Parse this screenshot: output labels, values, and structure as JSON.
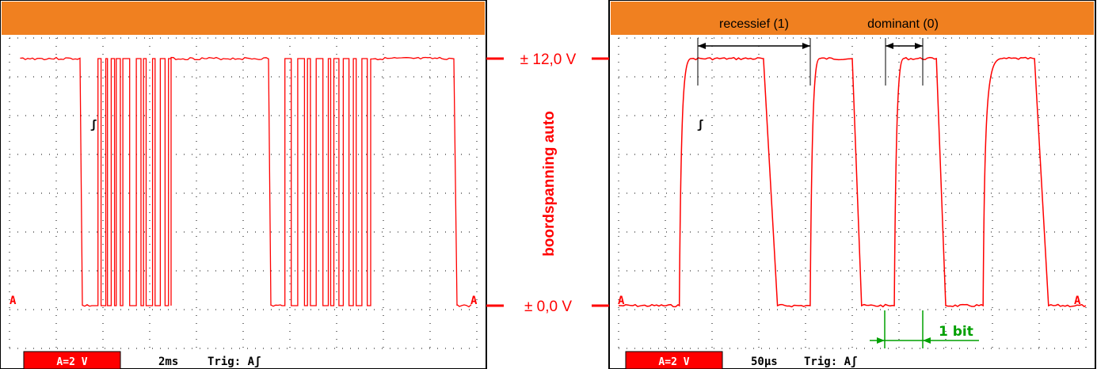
{
  "center": {
    "level_high": "± 12,0 V",
    "level_low": "± 0,0 V",
    "caption": "boordspanning auto"
  },
  "colors": {
    "header_orange": "#f08020",
    "trace_red": "#ff0000",
    "status_red": "#ff0000",
    "annotation_green": "#00a000",
    "grid_dot": "#000000"
  },
  "left_screen": {
    "marker": "A",
    "trigger_glyph": "ʃ",
    "status": {
      "range_badge": "A=2 V",
      "timebase": "2ms",
      "trigger": "Trig: Aʃ"
    }
  },
  "right_screen": {
    "marker": "A",
    "trigger_glyph": "ʃ",
    "label_recessive": "recessief (1)",
    "label_dominant": "dominant (0)",
    "label_bit": "1 bit",
    "status": {
      "range_badge": "A=2 V",
      "timebase": "50µs",
      "trigger": "Trig: Aʃ"
    }
  },
  "chart_data": [
    {
      "type": "line",
      "title": "",
      "xlabel": "",
      "ylabel": "",
      "time_per_div": "2ms",
      "volts_per_div": "2 V",
      "ylim": [
        0,
        12
      ],
      "series": [
        {
          "x": [
            0,
            0.7,
            1.1,
            2.4,
            5.0,
            6.7,
            8.3,
            9.9,
            10.4
          ],
          "y": [
            12,
            12,
            0,
            0,
            12,
            12,
            0,
            0,
            12
          ],
          "notes": "high 12 V with bursts of fast switching between 0 and 12 V (CAN frames)"
        }
      ]
    },
    {
      "type": "line",
      "title": "",
      "xlabel": "",
      "ylabel": "",
      "time_per_div": "50µs",
      "volts_per_div": "2 V",
      "ylim": [
        0,
        12
      ],
      "series": [
        {
          "x": [
            0,
            1.3,
            1.55,
            3.1,
            3.4,
            4.1,
            4.3,
            5.0,
            5.2,
            5.9,
            6.1,
            6.8,
            7.0,
            7.8,
            8.2,
            8.9,
            9.2,
            10
          ],
          "y": [
            0,
            0,
            12,
            12,
            0,
            0,
            12,
            12,
            0,
            0,
            12,
            12,
            0,
            0,
            12,
            12,
            0,
            0
          ]
        }
      ]
    }
  ]
}
